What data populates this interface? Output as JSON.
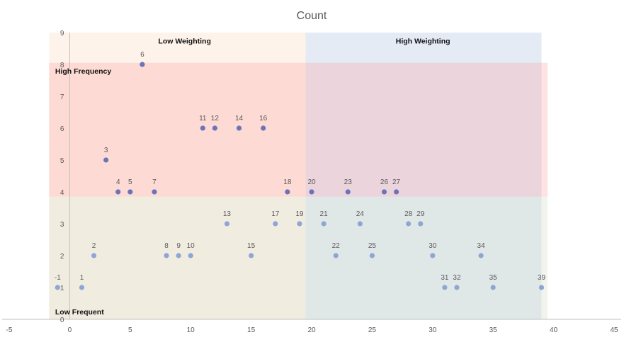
{
  "chart_data": {
    "type": "scatter",
    "title": "Count",
    "xlim": [
      -5,
      45
    ],
    "ylim": [
      0,
      9
    ],
    "x_ticks": [
      -5,
      0,
      5,
      10,
      15,
      20,
      25,
      30,
      35,
      40,
      45
    ],
    "y_ticks": [
      0,
      1,
      2,
      3,
      4,
      5,
      6,
      7,
      8,
      9
    ],
    "grid": false,
    "zones": [
      {
        "label": "Low Weighting",
        "x_range": [
          -1.7,
          19.5
        ],
        "y_range": [
          0,
          9
        ],
        "color": "#fdf3ea",
        "label_x": 9.5,
        "label_y": 8.75
      },
      {
        "label": "High Weighting",
        "x_range": [
          19.5,
          39
        ],
        "y_range": [
          0,
          9
        ],
        "color": "#e5ebf5",
        "label_x": 29.2,
        "label_y": 8.75
      },
      {
        "label": "High Frequency",
        "x_range": [
          -1.7,
          39.5
        ],
        "y_range": [
          3.85,
          8.05
        ],
        "color": "#ff9a9a",
        "opacity": 0.28,
        "label_x": -1.2,
        "label_y": 7.8
      },
      {
        "label": "Low Frequent",
        "x_range": [
          -1.7,
          39.5
        ],
        "y_range": [
          0,
          3.85
        ],
        "color": "#d8dfcf",
        "opacity": 0.35,
        "label_x": -1.2,
        "label_y": 0.25
      }
    ],
    "points": [
      {
        "x": -1,
        "y": 1,
        "label": "-1"
      },
      {
        "x": 1,
        "y": 1,
        "label": "1"
      },
      {
        "x": 2,
        "y": 2,
        "label": "2"
      },
      {
        "x": 3,
        "y": 5,
        "label": "3"
      },
      {
        "x": 4,
        "y": 4,
        "label": "4"
      },
      {
        "x": 5,
        "y": 4,
        "label": "5"
      },
      {
        "x": 6,
        "y": 8,
        "label": "6"
      },
      {
        "x": 7,
        "y": 4,
        "label": "7"
      },
      {
        "x": 8,
        "y": 2,
        "label": "8"
      },
      {
        "x": 9,
        "y": 2,
        "label": "9"
      },
      {
        "x": 10,
        "y": 2,
        "label": "10"
      },
      {
        "x": 11,
        "y": 6,
        "label": "11"
      },
      {
        "x": 12,
        "y": 6,
        "label": "12"
      },
      {
        "x": 13,
        "y": 3,
        "label": "13"
      },
      {
        "x": 14,
        "y": 6,
        "label": "14"
      },
      {
        "x": 15,
        "y": 2,
        "label": "15"
      },
      {
        "x": 16,
        "y": 6,
        "label": "16"
      },
      {
        "x": 17,
        "y": 3,
        "label": "17"
      },
      {
        "x": 18,
        "y": 4,
        "label": "18"
      },
      {
        "x": 19,
        "y": 3,
        "label": "19"
      },
      {
        "x": 20,
        "y": 4,
        "label": "20"
      },
      {
        "x": 21,
        "y": 3,
        "label": "21"
      },
      {
        "x": 22,
        "y": 2,
        "label": "22"
      },
      {
        "x": 23,
        "y": 4,
        "label": "23"
      },
      {
        "x": 24,
        "y": 3,
        "label": "24"
      },
      {
        "x": 25,
        "y": 2,
        "label": "25"
      },
      {
        "x": 26,
        "y": 4,
        "label": "26"
      },
      {
        "x": 27,
        "y": 4,
        "label": "27"
      },
      {
        "x": 28,
        "y": 3,
        "label": "28"
      },
      {
        "x": 29,
        "y": 3,
        "label": "29"
      },
      {
        "x": 30,
        "y": 2,
        "label": "30"
      },
      {
        "x": 31,
        "y": 1,
        "label": "31"
      },
      {
        "x": 32,
        "y": 1,
        "label": "32"
      },
      {
        "x": 34,
        "y": 2,
        "label": "34"
      },
      {
        "x": 35,
        "y": 1,
        "label": "35"
      },
      {
        "x": 39,
        "y": 1,
        "label": "39"
      }
    ],
    "marker_color_high": "#6b74b8",
    "marker_color_low": "#8ea6d4",
    "axis_color": "#bfbfbf"
  }
}
